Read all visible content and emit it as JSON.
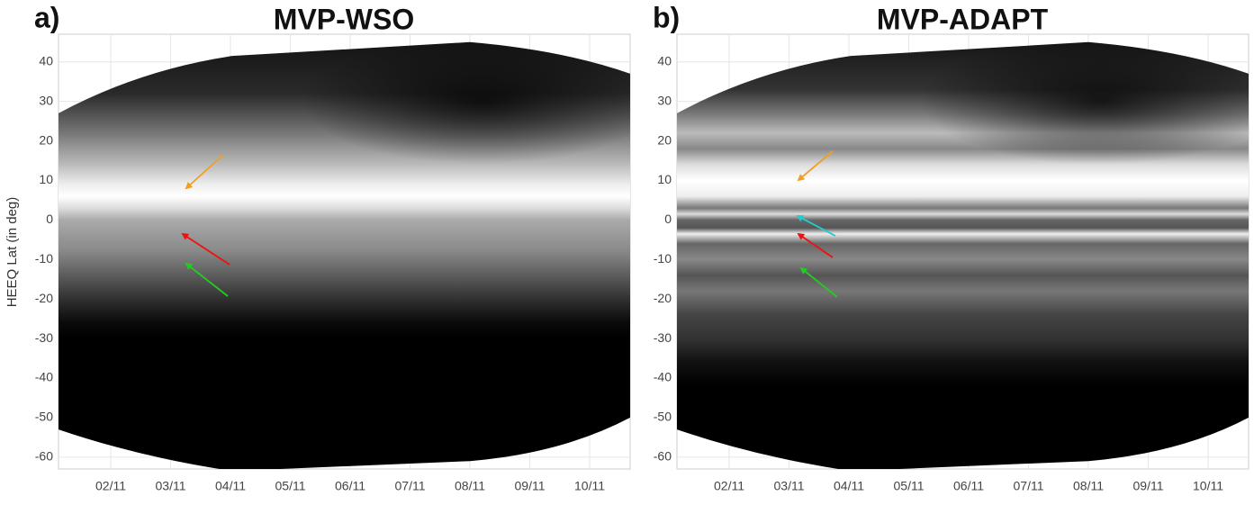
{
  "chart_data": [
    {
      "type": "heatmap",
      "panel_label": "a)",
      "title": "MVP-WSO",
      "ylabel": "HEEQ Lat (in deg)",
      "categories": [
        "02/11",
        "03/11",
        "04/11",
        "05/11",
        "06/11",
        "07/11",
        "08/11",
        "09/11",
        "10/11"
      ],
      "ylim": [
        -63,
        47
      ],
      "yticks": [
        -60,
        -50,
        -40,
        -30,
        -20,
        -10,
        0,
        10,
        20,
        30,
        40
      ],
      "grid": true,
      "arrows": [
        {
          "color": "#f0a020"
        },
        {
          "color": "#ee1111"
        },
        {
          "color": "#22cc22"
        }
      ]
    },
    {
      "type": "heatmap",
      "panel_label": "b)",
      "title": "MVP-ADAPT",
      "categories": [
        "02/11",
        "03/11",
        "04/11",
        "05/11",
        "06/11",
        "07/11",
        "08/11",
        "09/11",
        "10/11"
      ],
      "ylim": [
        -63,
        47
      ],
      "yticks": [
        -60,
        -50,
        -40,
        -30,
        -20,
        -10,
        0,
        10,
        20,
        30,
        40
      ],
      "grid": true,
      "arrows": [
        {
          "color": "#f0a020"
        },
        {
          "color": "#22cccc"
        },
        {
          "color": "#ee1111"
        },
        {
          "color": "#22cc22"
        }
      ]
    }
  ]
}
